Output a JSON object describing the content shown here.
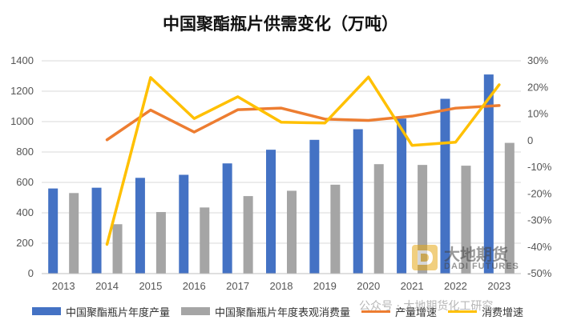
{
  "chart_data": {
    "type": "bar",
    "title": "中国聚酯瓶片供需变化（万吨）",
    "categories": [
      "2013",
      "2014",
      "2015",
      "2016",
      "2017",
      "2018",
      "2019",
      "2020",
      "2021",
      "2022",
      "2023"
    ],
    "series": [
      {
        "name": "中国聚酯瓶片年度产量",
        "type": "bar",
        "axis": "left",
        "color": "#4472C4",
        "values": [
          560,
          565,
          630,
          650,
          725,
          815,
          880,
          950,
          1020,
          1150,
          1310
        ]
      },
      {
        "name": "中国聚酯瓶片年度表观消费量",
        "type": "bar",
        "axis": "left",
        "color": "#A5A5A5",
        "values": [
          530,
          325,
          405,
          435,
          510,
          545,
          585,
          720,
          715,
          710,
          860
        ]
      },
      {
        "name": "产量增速",
        "type": "line",
        "axis": "right",
        "color": "#ED7D31",
        "values": [
          null,
          0.3,
          11.5,
          3.2,
          11.6,
          12.2,
          8.1,
          7.6,
          9.2,
          12.2,
          13.2
        ]
      },
      {
        "name": "消费增速",
        "type": "line",
        "axis": "right",
        "color": "#FFC000",
        "values": [
          null,
          -39.0,
          23.7,
          8.3,
          16.5,
          6.9,
          6.6,
          23.9,
          -1.8,
          -0.6,
          21.0
        ]
      }
    ],
    "y_left": {
      "min": 0,
      "max": 1400,
      "ticks": [
        0,
        200,
        400,
        600,
        800,
        1000,
        1200,
        1400
      ]
    },
    "y_right": {
      "min": -50,
      "max": 30,
      "ticks": [
        30,
        20,
        10,
        0,
        -10,
        -20,
        -30,
        -40,
        -50
      ],
      "tick_labels": [
        "30%",
        "20%",
        "10%",
        "0",
        "-10%",
        "-20%",
        "-30%",
        "-40%",
        "-50%"
      ]
    },
    "grid": true,
    "legend_position": "bottom"
  },
  "watermark": {
    "brand_zh": "大地期货",
    "brand_en": "DADI FUTURES",
    "wechat": "公众号 · 大地期货化工研究"
  }
}
